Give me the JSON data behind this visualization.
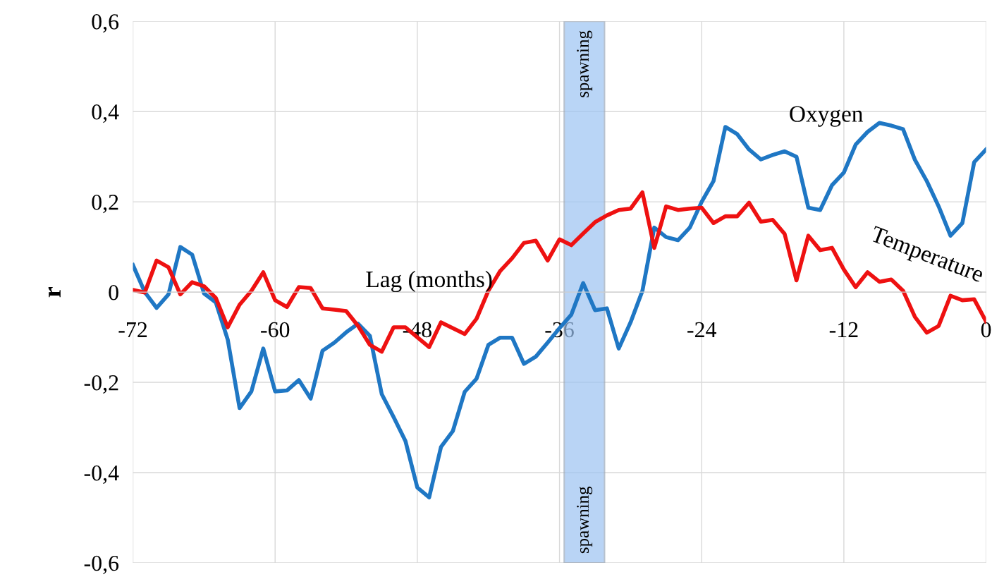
{
  "chart_data": {
    "type": "line",
    "xlabel": "Lag (months)",
    "ylabel": "r",
    "x": [
      -72,
      -71,
      -70,
      -69,
      -68,
      -67,
      -66,
      -65,
      -64,
      -63,
      -62,
      -61,
      -60,
      -59,
      -58,
      -57,
      -56,
      -55,
      -54,
      -53,
      -52,
      -51,
      -50,
      -49,
      -48,
      -47,
      -46,
      -45,
      -44,
      -43,
      -42,
      -41,
      -40,
      -39,
      -38,
      -37,
      -36,
      -35,
      -34,
      -33,
      -32,
      -31,
      -30,
      -29,
      -28,
      -27,
      -26,
      -25,
      -24,
      -23,
      -22,
      -21,
      -20,
      -19,
      -18,
      -17,
      -16,
      -15,
      -14,
      -13,
      -12,
      -11,
      -10,
      -9,
      -8,
      -7,
      -6,
      -5,
      -4,
      -3,
      -2,
      -1,
      0
    ],
    "series": [
      {
        "name": "Oxygen",
        "color": "#1f77c4",
        "values": [
          0.06,
          0.0,
          -0.035,
          -0.005,
          0.1,
          0.083,
          -0.003,
          -0.023,
          -0.105,
          -0.257,
          -0.22,
          -0.125,
          -0.22,
          -0.218,
          -0.195,
          -0.236,
          -0.13,
          -0.112,
          -0.089,
          -0.07,
          -0.097,
          -0.226,
          -0.277,
          -0.33,
          -0.433,
          -0.455,
          -0.343,
          -0.308,
          -0.221,
          -0.192,
          -0.117,
          -0.101,
          -0.101,
          -0.159,
          -0.143,
          -0.112,
          -0.08,
          -0.05,
          0.02,
          -0.04,
          -0.036,
          -0.125,
          -0.067,
          0.003,
          0.143,
          0.122,
          0.115,
          0.143,
          0.2,
          0.246,
          0.366,
          0.35,
          0.316,
          0.294,
          0.304,
          0.312,
          0.3,
          0.187,
          0.182,
          0.237,
          0.265,
          0.327,
          0.355,
          0.375,
          0.369,
          0.361,
          0.293,
          0.246,
          0.19,
          0.125,
          0.153,
          0.288,
          0.316
        ]
      },
      {
        "name": "Temperature",
        "color": "#ee1111",
        "values": [
          0.005,
          -0.001,
          0.07,
          0.055,
          -0.005,
          0.022,
          0.013,
          -0.013,
          -0.078,
          -0.028,
          0.003,
          0.044,
          -0.018,
          -0.033,
          0.011,
          0.009,
          -0.036,
          -0.039,
          -0.042,
          -0.075,
          -0.117,
          -0.132,
          -0.078,
          -0.078,
          -0.1,
          -0.122,
          -0.067,
          -0.08,
          -0.093,
          -0.059,
          0.003,
          0.047,
          0.075,
          0.109,
          0.114,
          0.07,
          0.117,
          0.104,
          0.13,
          0.155,
          0.17,
          0.182,
          0.185,
          0.221,
          0.098,
          0.19,
          0.182,
          0.185,
          0.187,
          0.153,
          0.168,
          0.168,
          0.198,
          0.156,
          0.16,
          0.129,
          0.026,
          0.125,
          0.093,
          0.098,
          0.05,
          0.011,
          0.044,
          0.023,
          0.028,
          0.003,
          -0.055,
          -0.09,
          -0.075,
          -0.008,
          -0.018,
          -0.016,
          -0.065
        ]
      }
    ],
    "xlim": [
      -72,
      0
    ],
    "xticks": [
      -72,
      -60,
      -48,
      -36,
      -24,
      -12,
      0
    ],
    "ylim": [
      -0.6,
      0.6
    ],
    "yticks": [
      {
        "value": -0.6,
        "label": "-0,6"
      },
      {
        "value": -0.4,
        "label": "-0,4"
      },
      {
        "value": -0.2,
        "label": "-0,2"
      },
      {
        "value": 0,
        "label": "0"
      },
      {
        "value": 0.2,
        "label": "0,2"
      },
      {
        "value": 0.4,
        "label": "0,4"
      },
      {
        "value": 0.6,
        "label": "0,6"
      }
    ],
    "bands": [
      {
        "axis": "x",
        "from": -35.6,
        "to": -32.2,
        "label": "spawning",
        "color": "#9cc3f2"
      }
    ],
    "annotations": [
      "spawning"
    ],
    "grid": true,
    "legend": false,
    "marker": "none",
    "line_style": "solid"
  }
}
